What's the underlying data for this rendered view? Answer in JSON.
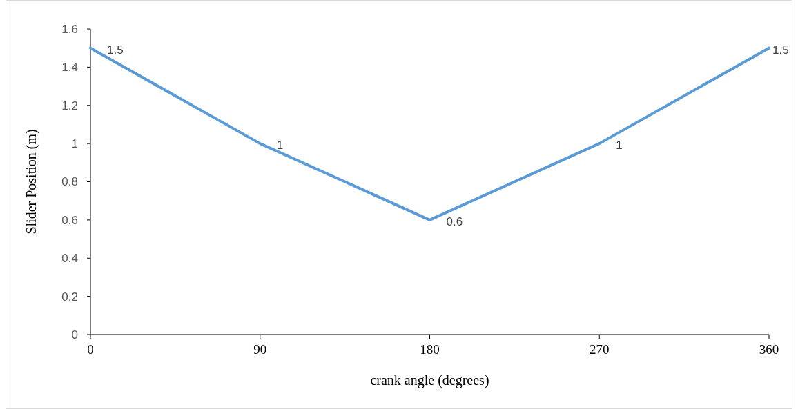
{
  "chart_data": {
    "type": "line",
    "xlabel": "crank angle  (degrees)",
    "ylabel": "Slider Position (m)",
    "x": [
      0,
      90,
      180,
      270,
      360
    ],
    "series": [
      {
        "color": "#5b9bd5",
        "values": [
          1.5,
          1,
          0.6,
          1,
          1.5
        ]
      }
    ],
    "xlim": [
      0,
      360
    ],
    "xticks": [
      0,
      90,
      180,
      270,
      360
    ],
    "ylim": [
      0,
      1.6
    ],
    "yticks": [
      0,
      0.2,
      0.4,
      0.6,
      0.8,
      1,
      1.2,
      1.4,
      1.6
    ],
    "data_labels": true,
    "grid": false,
    "marker": "none",
    "line_style": "solid"
  }
}
